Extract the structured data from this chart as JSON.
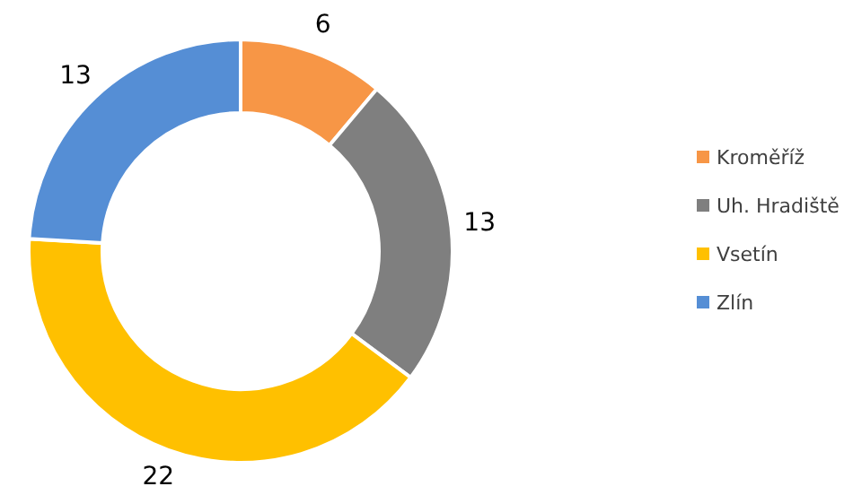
{
  "chart_data": {
    "type": "donut",
    "categories": [
      "Kroměříž",
      "Uh. Hradiště",
      "Vsetín",
      "Zlín"
    ],
    "values": [
      6,
      13,
      22,
      13
    ],
    "colors": [
      "#f79646",
      "#7f7f7f",
      "#ffc000",
      "#558ed5"
    ],
    "data_labels": true,
    "legend": "right"
  }
}
